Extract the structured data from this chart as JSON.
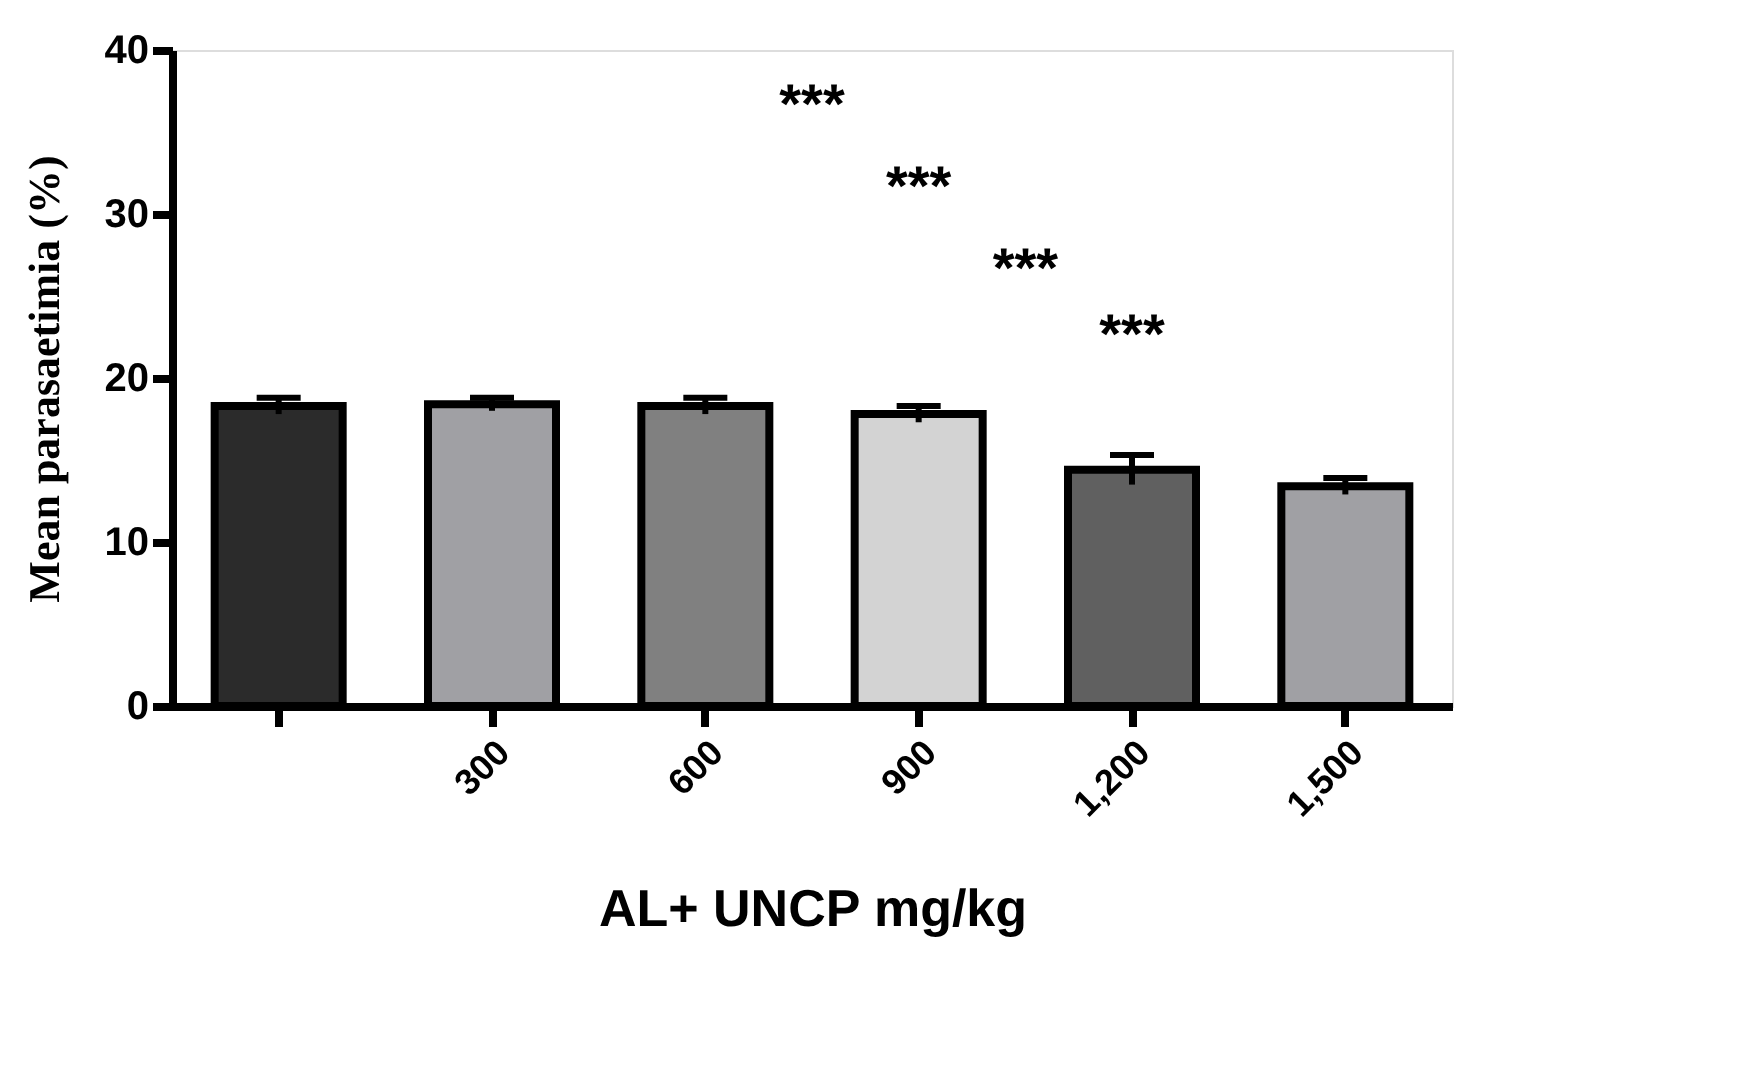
{
  "chart_data": {
    "type": "bar",
    "categories": [
      null,
      "300",
      "600",
      "900",
      "1,200",
      "1,500"
    ],
    "values": [
      18.3,
      18.4,
      18.3,
      17.8,
      14.4,
      13.4
    ],
    "errors": [
      0.5,
      0.4,
      0.5,
      0.5,
      0.9,
      0.5
    ],
    "colors": [
      "#2b2b2b",
      "#a0a0a4",
      "#808080",
      "#d3d3d3",
      "#606060",
      "#a0a0a4"
    ],
    "xlabel": "AL+ UNCP mg/kg",
    "ylabel": "Mean parasaetimia (%)",
    "ylim": [
      0,
      40
    ],
    "yticks": [
      0,
      10,
      20,
      30,
      40
    ],
    "annotations": [
      "***",
      "***",
      "***",
      "***"
    ],
    "grid": false
  }
}
